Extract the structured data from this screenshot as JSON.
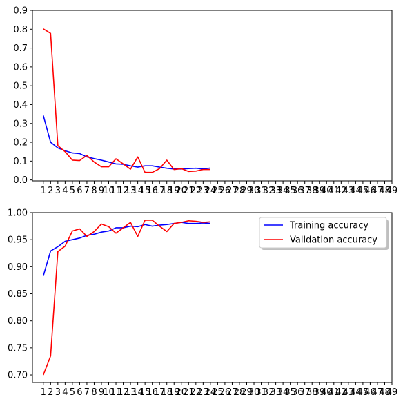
{
  "chart_data": [
    {
      "type": "line",
      "title": "",
      "xlabel": "",
      "ylabel": "",
      "x": [
        1,
        2,
        3,
        4,
        5,
        6,
        7,
        8,
        9,
        10,
        11,
        12,
        13,
        14,
        15,
        16,
        17,
        18,
        19,
        20,
        21,
        22,
        23,
        24
      ],
      "xticks": [
        1,
        2,
        3,
        4,
        5,
        6,
        7,
        8,
        9,
        10,
        11,
        12,
        13,
        14,
        15,
        16,
        17,
        18,
        19,
        20,
        21,
        22,
        23,
        24,
        25,
        26,
        27,
        28,
        29,
        30,
        31,
        32,
        33,
        34,
        35,
        36,
        37,
        38,
        39,
        40,
        41,
        42,
        43,
        44,
        45,
        46,
        47,
        48,
        49
      ],
      "xlim": [
        -0.5,
        49
      ],
      "ylim": [
        -0.005,
        0.9
      ],
      "yticks": [
        0.0,
        0.1,
        0.2,
        0.3,
        0.4,
        0.5,
        0.6,
        0.7,
        0.8,
        0.9
      ],
      "ytick_labels": [
        "0.0",
        "0.1",
        "0.2",
        "0.3",
        "0.4",
        "0.5",
        "0.6",
        "0.7",
        "0.8",
        "0.9"
      ],
      "legend": false,
      "series": [
        {
          "color": "#0000ff",
          "values": [
            0.342,
            0.2,
            0.17,
            0.155,
            0.143,
            0.14,
            0.122,
            0.113,
            0.105,
            0.095,
            0.085,
            0.083,
            0.075,
            0.068,
            0.075,
            0.075,
            0.068,
            0.062,
            0.058,
            0.058,
            0.06,
            0.062,
            0.058,
            0.063
          ]
        },
        {
          "color": "#ff0000",
          "values": [
            0.802,
            0.778,
            0.182,
            0.15,
            0.105,
            0.103,
            0.13,
            0.095,
            0.07,
            0.07,
            0.112,
            0.085,
            0.057,
            0.122,
            0.04,
            0.04,
            0.06,
            0.105,
            0.055,
            0.06,
            0.045,
            0.047,
            0.055,
            0.055
          ]
        }
      ]
    },
    {
      "type": "line",
      "title": "",
      "xlabel": "",
      "ylabel": "",
      "x": [
        1,
        2,
        3,
        4,
        5,
        6,
        7,
        8,
        9,
        10,
        11,
        12,
        13,
        14,
        15,
        16,
        17,
        18,
        19,
        20,
        21,
        22,
        23,
        24
      ],
      "xticks": [
        1,
        2,
        3,
        4,
        5,
        6,
        7,
        8,
        9,
        10,
        11,
        12,
        13,
        14,
        15,
        16,
        17,
        18,
        19,
        20,
        21,
        22,
        23,
        24,
        25,
        26,
        27,
        28,
        29,
        30,
        31,
        32,
        33,
        34,
        35,
        36,
        37,
        38,
        39,
        40,
        41,
        42,
        43,
        44,
        45,
        46,
        47,
        48,
        49
      ],
      "xlim": [
        -0.5,
        49
      ],
      "ylim": [
        0.686,
        1.0
      ],
      "yticks": [
        0.7,
        0.75,
        0.8,
        0.85,
        0.9,
        0.95,
        1.0
      ],
      "ytick_labels": [
        "0.70",
        "0.75",
        "0.80",
        "0.85",
        "0.90",
        "0.95",
        "1.00"
      ],
      "legend": true,
      "legend_position": "top-right",
      "series": [
        {
          "name": "Training accuracy",
          "color": "#0000ff",
          "values": [
            0.883,
            0.929,
            0.937,
            0.947,
            0.95,
            0.953,
            0.958,
            0.96,
            0.964,
            0.966,
            0.972,
            0.972,
            0.975,
            0.974,
            0.978,
            0.975,
            0.977,
            0.978,
            0.98,
            0.982,
            0.98,
            0.98,
            0.981,
            0.98
          ]
        },
        {
          "name": "Validation accuracy",
          "color": "#ff0000",
          "values": [
            0.7,
            0.735,
            0.928,
            0.938,
            0.966,
            0.97,
            0.956,
            0.965,
            0.979,
            0.974,
            0.962,
            0.972,
            0.982,
            0.956,
            0.986,
            0.986,
            0.975,
            0.965,
            0.98,
            0.982,
            0.985,
            0.984,
            0.982,
            0.983
          ]
        }
      ]
    }
  ]
}
